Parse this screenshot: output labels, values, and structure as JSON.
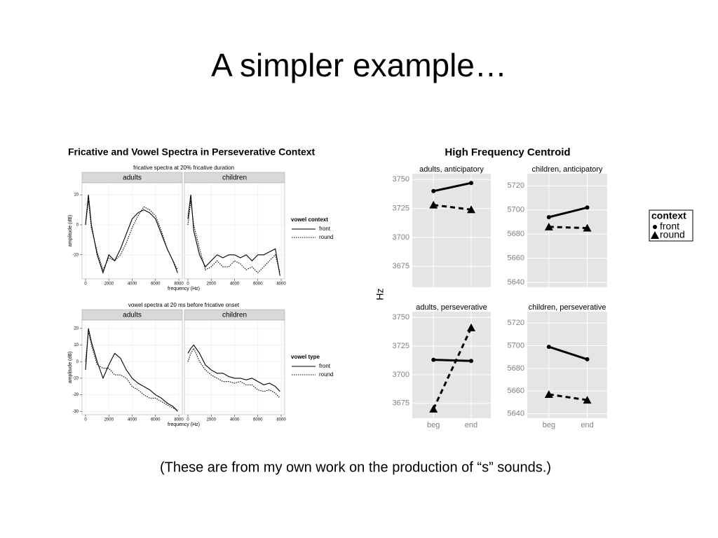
{
  "title": "A simpler example…",
  "caption": "(These are from my own work on the production of “s” sounds.)",
  "chart_data": [
    {
      "type": "line",
      "title": "Fricative and Vowel Spectra in Perseverative Context",
      "panels": [
        {
          "subtitle": "fricative spectra at 20% fricative duration",
          "legend_title": "vowel context",
          "xlabel": "frequency (Hz)",
          "ylabel": "amplitude (dB)",
          "facets": [
            "adults",
            "children"
          ],
          "xlim": [
            -300,
            8300
          ],
          "xticks": [
            0,
            2000,
            4000,
            6000,
            8000
          ],
          "ylim": [
            -18,
            14
          ],
          "yticks": [
            -10,
            0,
            10
          ],
          "grid": true,
          "x": [
            0,
            250,
            500,
            1000,
            1500,
            2000,
            2500,
            3000,
            3500,
            4000,
            4500,
            5000,
            5500,
            6000,
            6500,
            7000,
            7500,
            7900
          ],
          "series": [
            {
              "name": "front",
              "color": "#000000",
              "dash": "solid",
              "values": [
                [
                  0,
                  10,
                  0,
                  -10,
                  -16,
                  -10,
                  -12,
                  -8,
                  -3,
                  2,
                  4,
                  5,
                  4,
                  2,
                  -3,
                  -8,
                  -12,
                  -16
                ],
                [
                  2,
                  10,
                  -2,
                  -10,
                  -14,
                  -12,
                  -10,
                  -11,
                  -10,
                  -10,
                  -11,
                  -10,
                  -12,
                  -10,
                  -10,
                  -9,
                  -8,
                  -17
                ]
              ]
            },
            {
              "name": "round",
              "color": "#000000",
              "dash": "dotted",
              "values": [
                [
                  0,
                  8,
                  -1,
                  -9,
                  -15,
                  -11,
                  -12,
                  -10,
                  -6,
                  -1,
                  3,
                  6,
                  5,
                  3,
                  -2,
                  -8,
                  -12,
                  -15
                ],
                [
                  0,
                  8,
                  0,
                  -8,
                  -15,
                  -14,
                  -12,
                  -14,
                  -14,
                  -12,
                  -13,
                  -15,
                  -14,
                  -16,
                  -14,
                  -12,
                  -10,
                  -16
                ]
              ]
            }
          ]
        },
        {
          "subtitle": "vowel spectra at 20 ms before fricative onset",
          "legend_title": "vowel type",
          "xlabel": "frequency (Hz)",
          "ylabel": "amplitude (dB)",
          "facets": [
            "adults",
            "children"
          ],
          "xlim": [
            -300,
            8300
          ],
          "xticks": [
            0,
            2000,
            4000,
            6000,
            8000
          ],
          "ylim": [
            -32,
            25
          ],
          "yticks": [
            -30,
            -20,
            -10,
            0,
            10,
            20
          ],
          "grid": true,
          "x": [
            0,
            250,
            500,
            1000,
            1500,
            2000,
            2500,
            3000,
            3500,
            4000,
            4500,
            5000,
            5500,
            6000,
            6500,
            7000,
            7500,
            7900
          ],
          "series": [
            {
              "name": "front",
              "color": "#000000",
              "dash": "solid",
              "values": [
                [
                  -5,
                  20,
                  12,
                  0,
                  -10,
                  -2,
                  5,
                  2,
                  -5,
                  -10,
                  -13,
                  -15,
                  -17,
                  -20,
                  -22,
                  -25,
                  -27,
                  -30
                ],
                [
                  5,
                  8,
                  10,
                  5,
                  -2,
                  -5,
                  -7,
                  -7,
                  -9,
                  -10,
                  -10,
                  -11,
                  -10,
                  -12,
                  -14,
                  -13,
                  -15,
                  -18
                ]
              ]
            },
            {
              "name": "round",
              "color": "#000000",
              "dash": "dotted",
              "values": [
                [
                  0,
                  18,
                  10,
                  -2,
                  -4,
                  -4,
                  -8,
                  -8,
                  -10,
                  -15,
                  -17,
                  -20,
                  -22,
                  -22,
                  -24,
                  -26,
                  -28,
                  -29
                ],
                [
                  0,
                  5,
                  8,
                  0,
                  -5,
                  -8,
                  -10,
                  -12,
                  -12,
                  -13,
                  -12,
                  -14,
                  -14,
                  -17,
                  -18,
                  -17,
                  -19,
                  -22
                ]
              ]
            }
          ]
        }
      ]
    },
    {
      "type": "line",
      "title": "High Frequency Centroid",
      "ylabel": "Hz",
      "legend_title": "context",
      "categories": [
        "beg",
        "end"
      ],
      "grid": true,
      "facets": [
        {
          "name": "adults, anticipatory",
          "ylim": [
            3657,
            3755
          ],
          "yticks": [
            3675,
            3700,
            3725,
            3750
          ]
        },
        {
          "name": "children, anticipatory",
          "ylim": [
            5636,
            5730
          ],
          "yticks": [
            5640,
            5660,
            5680,
            5700,
            5720
          ]
        },
        {
          "name": "adults, perseverative",
          "ylim": [
            3662,
            3755
          ],
          "yticks": [
            3675,
            3700,
            3725,
            3750
          ]
        },
        {
          "name": "children, perseverative",
          "ylim": [
            5636,
            5730
          ],
          "yticks": [
            5640,
            5660,
            5680,
            5700,
            5720
          ]
        }
      ],
      "series": [
        {
          "name": "front",
          "color": "#000000",
          "dash": "solid",
          "marker": "circle",
          "values": [
            [
              3740,
              3747
            ],
            [
              5694,
              5702
            ],
            [
              3713,
              3712
            ],
            [
              5699,
              5688
            ]
          ]
        },
        {
          "name": "round",
          "color": "#000000",
          "dash": "dashed",
          "marker": "triangle",
          "values": [
            [
              3728,
              3724
            ],
            [
              5686,
              5685
            ],
            [
              3670,
              3741
            ],
            [
              5657,
              5652
            ]
          ]
        }
      ]
    }
  ]
}
